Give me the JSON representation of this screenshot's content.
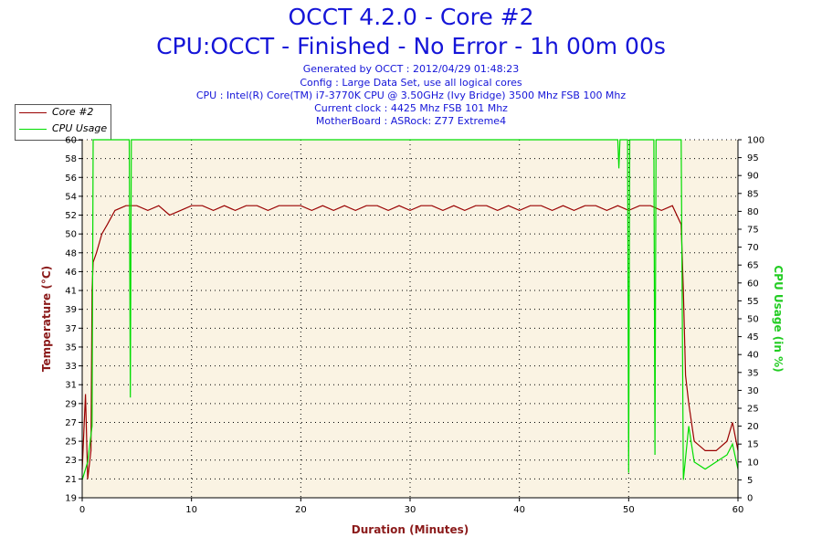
{
  "header": {
    "title": "OCCT 4.2.0 - Core #2",
    "subtitle": "CPU:OCCT - Finished - No Error - 1h 00m 00s",
    "info_lines": [
      "Generated by OCCT : 2012/04/29 01:48:23",
      "Config : Large Data Set, use all logical cores",
      "CPU : Intel(R) Core(TM) i7-3770K CPU @ 3.50GHz (Ivy Bridge) 3500 Mhz FSB 100 Mhz",
      "Current clock : 4425 Mhz FSB 101 Mhz",
      "MotherBoard : ASRock: Z77 Extreme4"
    ]
  },
  "legend": {
    "items": [
      {
        "label": "Core #2",
        "color": "#990000"
      },
      {
        "label": "CPU Usage",
        "color": "#00dd00"
      }
    ]
  },
  "colors": {
    "plot_background": "#faf3e3",
    "temperature": "#990000",
    "cpu_usage": "#00dd00",
    "left_axis_title": "#8b1a1a",
    "right_axis_title": "#22cc22",
    "x_axis_title": "#8b1a1a",
    "title": "#1515d8"
  },
  "chart_data": {
    "type": "line",
    "xlabel": "Duration (Minutes)",
    "ylabel": "Temperature (°C)",
    "y2label": "CPU Usage (in %)",
    "xlim": [
      0,
      60
    ],
    "ylim": [
      19,
      60
    ],
    "y2lim": [
      0,
      100
    ],
    "grid": true,
    "legend_position": "top-left",
    "x_ticks": [
      0,
      10,
      20,
      30,
      40,
      50,
      60
    ],
    "y_ticks": [
      19,
      21,
      23,
      25,
      27,
      29,
      31,
      33,
      35,
      37,
      39,
      41,
      46,
      48,
      50,
      52,
      54,
      56,
      58,
      60
    ],
    "y2_ticks": [
      0,
      5,
      10,
      15,
      20,
      25,
      30,
      35,
      40,
      45,
      50,
      55,
      60,
      65,
      70,
      75,
      80,
      85,
      90,
      95,
      100
    ],
    "series": [
      {
        "name": "Core #2",
        "axis": "left",
        "points": [
          [
            0,
            22
          ],
          [
            0.3,
            30
          ],
          [
            0.5,
            21
          ],
          [
            0.8,
            24
          ],
          [
            0.9,
            41
          ],
          [
            1.0,
            47
          ],
          [
            1.3,
            48
          ],
          [
            1.8,
            50
          ],
          [
            2.3,
            51
          ],
          [
            3,
            52.5
          ],
          [
            4,
            53
          ],
          [
            5,
            53
          ],
          [
            6,
            52.5
          ],
          [
            7,
            53
          ],
          [
            8,
            52
          ],
          [
            9,
            52.5
          ],
          [
            10,
            53
          ],
          [
            11,
            53
          ],
          [
            12,
            52.5
          ],
          [
            13,
            53
          ],
          [
            14,
            52.5
          ],
          [
            15,
            53
          ],
          [
            16,
            53
          ],
          [
            17,
            52.5
          ],
          [
            18,
            53
          ],
          [
            19,
            53
          ],
          [
            20,
            53
          ],
          [
            21,
            52.5
          ],
          [
            22,
            53
          ],
          [
            23,
            52.5
          ],
          [
            24,
            53
          ],
          [
            25,
            52.5
          ],
          [
            26,
            53
          ],
          [
            27,
            53
          ],
          [
            28,
            52.5
          ],
          [
            29,
            53
          ],
          [
            30,
            52.5
          ],
          [
            31,
            53
          ],
          [
            32,
            53
          ],
          [
            33,
            52.5
          ],
          [
            34,
            53
          ],
          [
            35,
            52.5
          ],
          [
            36,
            53
          ],
          [
            37,
            53
          ],
          [
            38,
            52.5
          ],
          [
            39,
            53
          ],
          [
            40,
            52.5
          ],
          [
            41,
            53
          ],
          [
            42,
            53
          ],
          [
            43,
            52.5
          ],
          [
            44,
            53
          ],
          [
            45,
            52.5
          ],
          [
            46,
            53
          ],
          [
            47,
            53
          ],
          [
            48,
            52.5
          ],
          [
            49,
            53
          ],
          [
            50,
            52.5
          ],
          [
            51,
            53
          ],
          [
            52,
            53
          ],
          [
            53,
            52.5
          ],
          [
            54,
            53
          ],
          [
            54.8,
            51
          ],
          [
            55.0,
            41
          ],
          [
            55.2,
            32
          ],
          [
            55.5,
            29
          ],
          [
            56,
            25
          ],
          [
            57,
            24
          ],
          [
            58,
            24
          ],
          [
            59,
            25
          ],
          [
            59.5,
            27
          ],
          [
            60,
            24
          ]
        ]
      },
      {
        "name": "CPU Usage",
        "axis": "right",
        "points": [
          [
            0,
            5
          ],
          [
            0.5,
            10
          ],
          [
            0.9,
            20
          ],
          [
            1.0,
            100
          ],
          [
            1.1,
            100
          ],
          [
            1.3,
            100
          ],
          [
            4.3,
            100
          ],
          [
            4.4,
            28
          ],
          [
            4.5,
            100
          ],
          [
            49,
            100
          ],
          [
            49.1,
            92
          ],
          [
            49.2,
            100
          ],
          [
            49.9,
            100
          ],
          [
            50.0,
            7
          ],
          [
            50.1,
            100
          ],
          [
            52.3,
            100
          ],
          [
            52.4,
            12
          ],
          [
            52.5,
            100
          ],
          [
            54.8,
            100
          ],
          [
            55.0,
            5
          ],
          [
            55.5,
            20
          ],
          [
            56,
            10
          ],
          [
            57,
            8
          ],
          [
            58,
            10
          ],
          [
            59,
            12
          ],
          [
            59.5,
            15
          ],
          [
            60,
            8
          ]
        ]
      }
    ]
  }
}
